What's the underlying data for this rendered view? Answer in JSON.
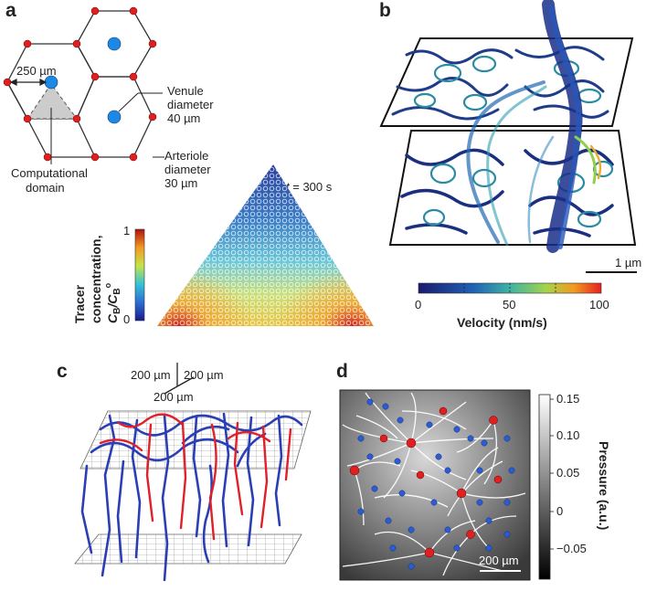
{
  "panels": {
    "a": {
      "label": "a",
      "distance_label": "250 µm",
      "venule_label": [
        "Venule",
        "diameter",
        "40 µm"
      ],
      "arteriole_label": [
        "Arteriole",
        "diameter",
        "30 µm"
      ],
      "domain_label": [
        "Computational",
        "domain"
      ],
      "time_label_t": "t",
      "time_label_rest": " = 300 s",
      "colorbar": {
        "title_line1": "Tracer",
        "title_line2": "concentration,",
        "title_line3": "C",
        "title_sub": "B",
        "title_slash": "/C",
        "title_sub2": "B",
        "title_sup": "o",
        "max_tick": "1",
        "min_tick": "0"
      },
      "colors": {
        "arteriole": "#e02020",
        "venule": "#1e88e5",
        "domain_fill": "#cccccc"
      }
    },
    "b": {
      "label": "b",
      "scale_label": "1 µm",
      "colorbar": {
        "ticks": [
          "0",
          "50",
          "100"
        ],
        "title": "Velocity (nm/s)"
      }
    },
    "c": {
      "label": "c",
      "axis_labels": [
        "200 µm",
        "200 µm",
        "200 µm"
      ],
      "colors": {
        "arteriole": "#e0202a",
        "venule": "#2b3fb5"
      }
    },
    "d": {
      "label": "d",
      "scale_label": "200 µm",
      "colorbar": {
        "ticks": [
          "0.15",
          "0.10",
          "0.05",
          "0",
          "−0.05"
        ],
        "title": "Pressure (a.u.)"
      }
    }
  }
}
